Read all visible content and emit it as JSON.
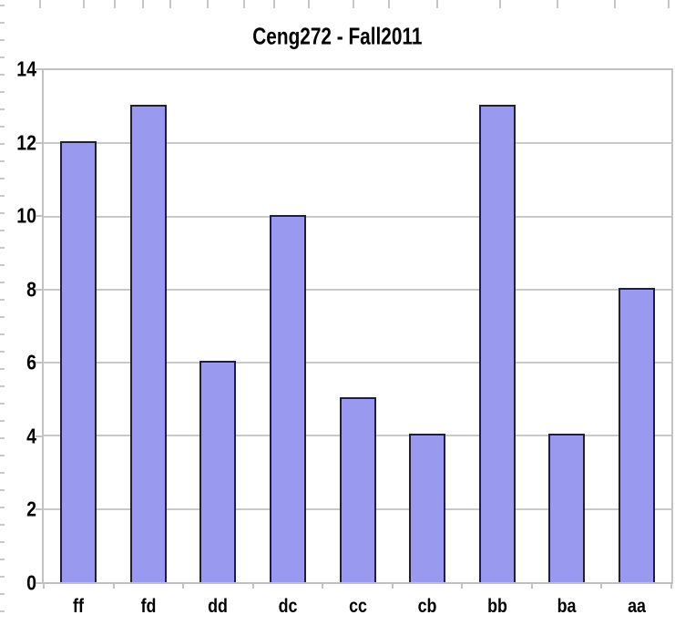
{
  "chart_data": {
    "type": "bar",
    "title": "Ceng272 - Fall2011",
    "categories": [
      "ff",
      "fd",
      "dd",
      "dc",
      "cc",
      "cb",
      "bb",
      "ba",
      "aa"
    ],
    "values": [
      12,
      13,
      6,
      10,
      5,
      4,
      13,
      4,
      8
    ],
    "xlabel": "",
    "ylabel": "",
    "ylim": [
      0,
      14
    ],
    "yticks": [
      0,
      2,
      4,
      6,
      8,
      10,
      12,
      14
    ],
    "grid": "horizontal",
    "legend": "none",
    "colors": {
      "bar_fill": "#9999f0",
      "bar_border": "#1f1f3d",
      "grid_line": "#c9c9c9",
      "frame": "#c2c2c2",
      "text": "#000000",
      "background": "#ffffff"
    }
  }
}
